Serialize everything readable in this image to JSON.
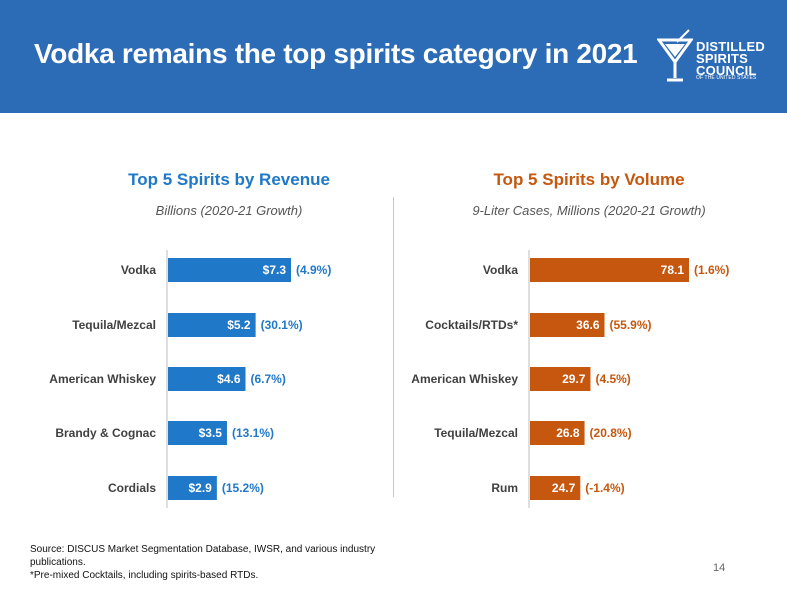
{
  "header": {
    "title": "Vodka remains the top spirits category in 2021",
    "logo_lines": [
      "DISTILLED",
      "SPIRITS",
      "COUNCIL"
    ],
    "logo_sub": "OF THE UNITED STATES",
    "banner_color": "#2c6bb5"
  },
  "chart_data": [
    {
      "type": "bar",
      "orientation": "horizontal",
      "title": "Top 5 Spirits by Revenue",
      "subtitle": "Billions (2020-21 Growth)",
      "color": "#1f78c8",
      "categories": [
        "Vodka",
        "Tequila/Mezcal",
        "American Whiskey",
        "Brandy & Cognac",
        "Cordials"
      ],
      "values": [
        7.3,
        5.2,
        4.6,
        3.5,
        2.9
      ],
      "value_labels": [
        "$7.3",
        "$5.2",
        "$4.6",
        "$3.5",
        "$2.9"
      ],
      "growth_labels": [
        "(4.9%)",
        "(30.1%)",
        "(6.7%)",
        "(13.1%)",
        "(15.2%)"
      ],
      "xlim": [
        0,
        7.3
      ]
    },
    {
      "type": "bar",
      "orientation": "horizontal",
      "title": "Top 5 Spirits by Volume",
      "subtitle": "9-Liter Cases, Millions (2020-21 Growth)",
      "color": "#c5570f",
      "categories": [
        "Vodka",
        "Cocktails/RTDs*",
        "American Whiskey",
        "Tequila/Mezcal",
        "Rum"
      ],
      "values": [
        78.1,
        36.6,
        29.7,
        26.8,
        24.7
      ],
      "value_labels": [
        "78.1",
        "36.6",
        "29.7",
        "26.8",
        "24.7"
      ],
      "growth_labels": [
        "(1.6%)",
        "(55.9%)",
        "(4.5%)",
        "(20.8%)",
        "(-1.4%)"
      ],
      "xlim": [
        0,
        78.1
      ]
    }
  ],
  "footnote": {
    "source": "Source: DISCUS Market Segmentation Database, IWSR, and various industry publications.",
    "note": "*Pre-mixed Cocktails, including spirits-based RTDs."
  },
  "page_number": "14"
}
